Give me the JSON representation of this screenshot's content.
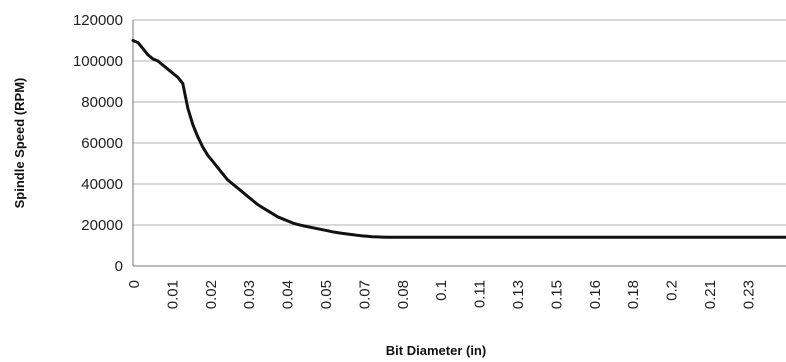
{
  "chart_data": {
    "type": "line",
    "title": "",
    "xlabel": "Bit Diameter (in)",
    "ylabel": "Spindle Speed (RPM)",
    "ylim": [
      0,
      120000
    ],
    "yticks": [
      "0",
      "20000",
      "40000",
      "60000",
      "80000",
      "100000",
      "120000"
    ],
    "xticks": [
      "0",
      "0.01",
      "0.02",
      "0.03",
      "0.04",
      "0.05",
      "0.07",
      "0.08",
      "0.1",
      "0.11",
      "0.13",
      "0.15",
      "0.16",
      "0.18",
      "0.2",
      "0.21",
      "0.23"
    ],
    "grid": "horizontal",
    "legend": "none",
    "series": [
      {
        "x": [
          0,
          0.002,
          0.004,
          0.006,
          0.008,
          0.01,
          0.012,
          0.014,
          0.016,
          0.018,
          0.02,
          0.022,
          0.024,
          0.026,
          0.028,
          0.03,
          0.032,
          0.034,
          0.036,
          0.038,
          0.04,
          0.042,
          0.044,
          0.046,
          0.048,
          0.05,
          0.052,
          0.054,
          0.056,
          0.058,
          0.06,
          0.062,
          0.064,
          0.066,
          0.068,
          0.07,
          0.072,
          0.074,
          0.076,
          0.078,
          0.08,
          0.082,
          0.084,
          0.086,
          0.088,
          0.09,
          0.092,
          0.094,
          0.096,
          0.098,
          0.1,
          0.102,
          0.106,
          0.11,
          0.12,
          0.14,
          0.16,
          0.18,
          0.2,
          0.22,
          0.24,
          0.262
        ],
        "values": [
          110000,
          109000,
          106000,
          103000,
          101000,
          100000,
          98000,
          96000,
          94000,
          92000,
          89000,
          77000,
          69000,
          63000,
          58000,
          54000,
          51000,
          48000,
          45000,
          42000,
          40000,
          38000,
          36000,
          34000,
          32000,
          30000,
          28500,
          27000,
          25500,
          24000,
          23000,
          22000,
          21000,
          20300,
          19700,
          19200,
          18700,
          18200,
          17700,
          17200,
          16700,
          16300,
          15900,
          15600,
          15300,
          15000,
          14700,
          14500,
          14300,
          14200,
          14100,
          14000,
          14000,
          14000,
          14000,
          14000,
          14000,
          14000,
          14000,
          14000,
          14000,
          14000
        ]
      }
    ]
  }
}
